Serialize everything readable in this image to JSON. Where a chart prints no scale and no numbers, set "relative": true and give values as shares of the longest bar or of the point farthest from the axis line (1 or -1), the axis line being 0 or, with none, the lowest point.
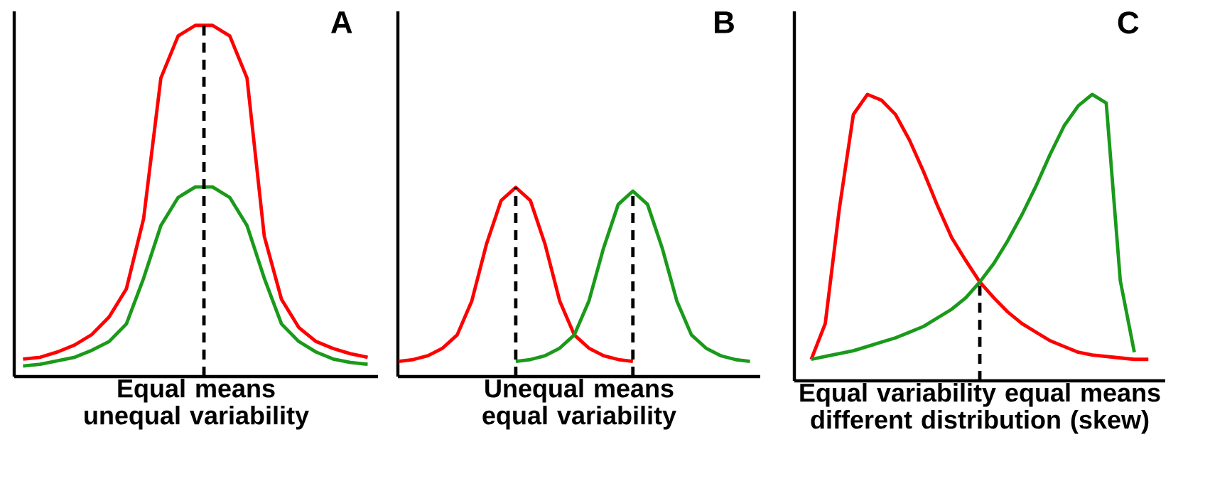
{
  "chart_data": [
    {
      "type": "line",
      "relative": true,
      "title": "A",
      "xlabel": "Equal means unequal variability",
      "categories": [
        null,
        null,
        null,
        null,
        null,
        null,
        null,
        null,
        null,
        null,
        null,
        null,
        null,
        null,
        null,
        null,
        null,
        null,
        null,
        null,
        null
      ],
      "series": [
        {
          "color": "#ff0000",
          "values": [
            0.05,
            0.055,
            0.07,
            0.09,
            0.12,
            0.17,
            0.25,
            0.45,
            0.85,
            0.97,
            1,
            1,
            0.97,
            0.85,
            0.4,
            0.22,
            0.14,
            0.1,
            0.08,
            0.065,
            0.055
          ]
        },
        {
          "color": "#1a9a1a",
          "values": [
            0.03,
            0.035,
            0.045,
            0.055,
            0.075,
            0.1,
            0.15,
            0.28,
            0.43,
            0.51,
            0.54,
            0.54,
            0.51,
            0.43,
            0.28,
            0.15,
            0.1,
            0.07,
            0.05,
            0.04,
            0.035
          ]
        }
      ]
    },
    {
      "type": "line",
      "relative": true,
      "title": "B",
      "xlabel": "Unequal means equal variability",
      "categories": [
        null,
        null,
        null,
        null,
        null,
        null,
        null,
        null,
        null,
        null,
        null,
        null,
        null,
        null,
        null,
        null,
        null,
        null,
        null,
        null,
        null,
        null,
        null,
        null,
        null
      ],
      "series": [
        {
          "color": "#ff0000",
          "values": [
            0.08,
            0.09,
            0.11,
            0.15,
            0.22,
            0.4,
            0.7,
            0.93,
            1,
            0.93,
            0.7,
            0.4,
            0.22,
            0.15,
            0.11,
            0.09,
            0.08,
            null,
            null,
            null,
            null,
            null,
            null,
            null,
            null
          ]
        },
        {
          "color": "#1a9a1a",
          "values": [
            null,
            null,
            null,
            null,
            null,
            null,
            null,
            null,
            0.08,
            0.09,
            0.11,
            0.15,
            0.22,
            0.4,
            0.68,
            0.91,
            0.98,
            0.91,
            0.68,
            0.4,
            0.22,
            0.15,
            0.11,
            0.09,
            0.08
          ]
        }
      ]
    },
    {
      "type": "line",
      "relative": true,
      "title": "C",
      "xlabel": "Equal variability equal means different distribution (skew)",
      "categories": [
        null,
        null,
        null,
        null,
        null,
        null,
        null,
        null,
        null,
        null,
        null,
        null,
        null,
        null,
        null,
        null,
        null,
        null,
        null,
        null,
        null,
        null,
        null,
        null,
        null
      ],
      "series": [
        {
          "color": "#ff0000",
          "values": [
            0.075,
            0.2,
            0.6,
            0.93,
            1,
            0.98,
            0.93,
            0.84,
            0.73,
            0.61,
            0.5,
            0.42,
            0.345,
            0.29,
            0.24,
            0.2,
            0.17,
            0.14,
            0.12,
            0.1,
            0.09,
            0.085,
            0.08,
            0.075,
            0.075
          ]
        },
        {
          "color": "#1a9a1a",
          "values": [
            0.075,
            0.085,
            0.095,
            0.105,
            0.12,
            0.135,
            0.15,
            0.17,
            0.19,
            0.22,
            0.25,
            0.29,
            0.345,
            0.41,
            0.49,
            0.58,
            0.68,
            0.79,
            0.89,
            0.96,
            1,
            0.97,
            0.35,
            0.1,
            null
          ]
        }
      ]
    }
  ]
}
